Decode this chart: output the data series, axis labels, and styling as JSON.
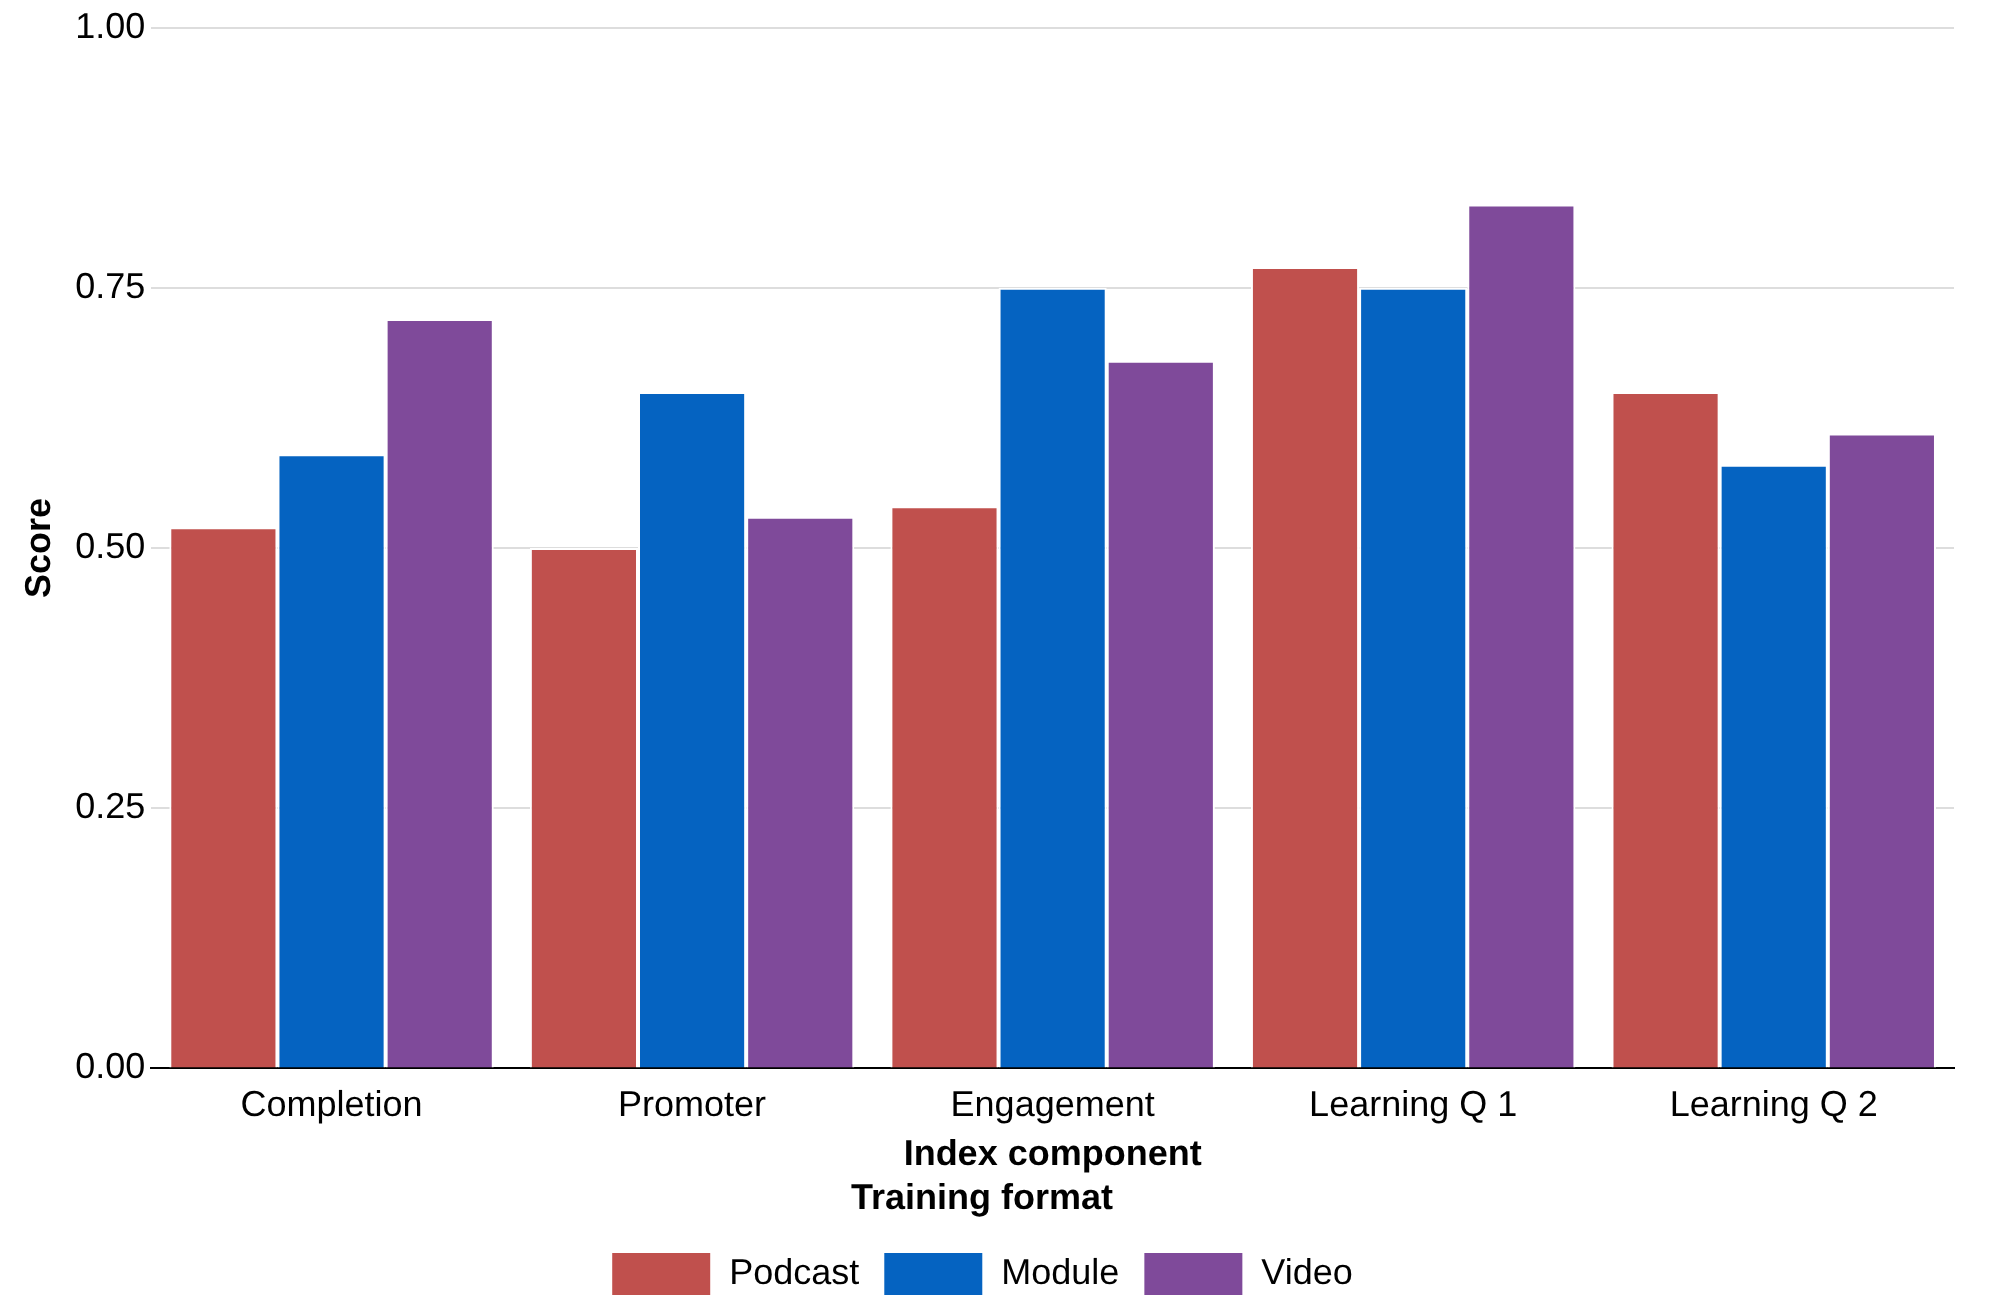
{
  "chart_data": {
    "type": "bar",
    "xlabel": "Index component",
    "ylabel": "Score",
    "legend_title": "Training format",
    "categories": [
      "Completion",
      "Promoter",
      "Engagement",
      "Learning Q 1",
      "Learning Q 2"
    ],
    "series": [
      {
        "name": "Podcast",
        "color": "#c0504d",
        "values": [
          0.52,
          0.5,
          0.54,
          0.77,
          0.65
        ]
      },
      {
        "name": "Module",
        "color": "#0563c1",
        "values": [
          0.59,
          0.65,
          0.75,
          0.75,
          0.58
        ]
      },
      {
        "name": "Video",
        "color": "#7f4a9a",
        "values": [
          0.72,
          0.53,
          0.68,
          0.83,
          0.61
        ]
      }
    ],
    "ylim": [
      0,
      1
    ],
    "yticks": [
      {
        "value": 0,
        "label": "0.00"
      },
      {
        "value": 0.25,
        "label": "0.25"
      },
      {
        "value": 0.5,
        "label": "0.50"
      },
      {
        "value": 0.75,
        "label": "0.75"
      },
      {
        "value": 1,
        "label": "1.00"
      }
    ],
    "grid": "y",
    "legend": "bottom"
  }
}
